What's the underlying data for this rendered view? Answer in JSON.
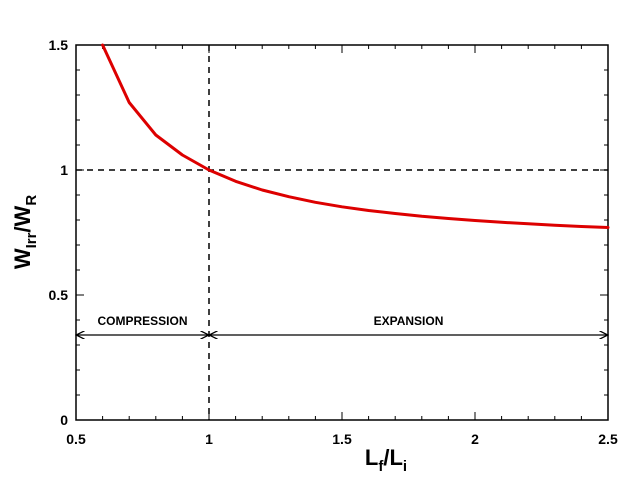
{
  "chart_data": {
    "type": "line",
    "xlabel": {
      "main": "L",
      "sub1": "f",
      "sep": "/L",
      "sub2": "i"
    },
    "ylabel": {
      "main": "W",
      "sub1": "Irr",
      "sep": "/W",
      "sub2": "R"
    },
    "xlim": [
      0.5,
      2.5
    ],
    "ylim": [
      0,
      1.5
    ],
    "xticks": [
      0.5,
      1,
      1.5,
      2,
      2.5
    ],
    "xtick_labels": [
      "0.5",
      "1",
      "1.5",
      "2",
      "2.5"
    ],
    "yticks": [
      0,
      0.5,
      1,
      1.5
    ],
    "ytick_labels": [
      "0",
      "0.5",
      "1",
      "1.5"
    ],
    "grid": false,
    "series": [
      {
        "color": "#dd0000",
        "x": [
          0.6,
          0.7,
          0.8,
          0.9,
          1.0,
          1.1,
          1.2,
          1.3,
          1.4,
          1.5,
          1.6,
          1.7,
          1.8,
          1.9,
          2.0,
          2.1,
          2.2,
          2.3,
          2.4,
          2.5
        ],
        "y": [
          1.5,
          1.27,
          1.14,
          1.06,
          1.0,
          0.955,
          0.92,
          0.893,
          0.871,
          0.853,
          0.838,
          0.826,
          0.815,
          0.806,
          0.798,
          0.791,
          0.785,
          0.779,
          0.774,
          0.77
        ]
      }
    ],
    "reference_lines": {
      "vertical_x": 1.0,
      "horizontal_y": 1.0
    },
    "annotations": [
      {
        "text": "COMPRESSION",
        "x_range": [
          0.5,
          1.0
        ],
        "arrow_y": 0.34
      },
      {
        "text": "EXPANSION",
        "x_range": [
          1.0,
          2.5
        ],
        "arrow_y": 0.34
      }
    ]
  }
}
